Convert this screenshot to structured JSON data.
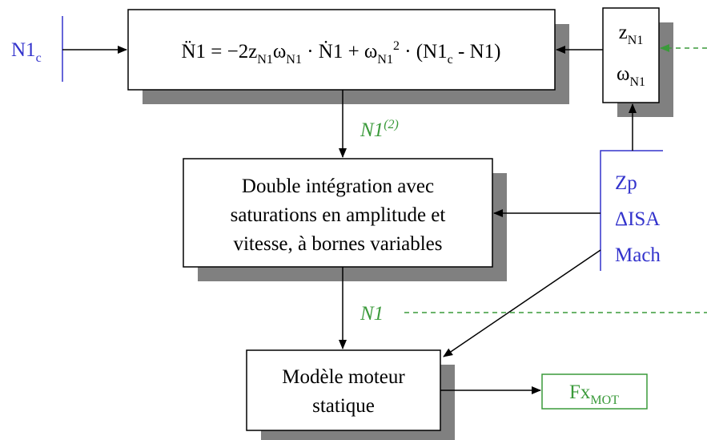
{
  "input": {
    "label": [
      {
        "t": "N1"
      },
      {
        "t": "c",
        "pos": "sub"
      }
    ]
  },
  "equation": [
    {
      "t": "N̈1 = −2z"
    },
    {
      "t": "N1",
      "pos": "sub"
    },
    {
      "t": "ω"
    },
    {
      "t": "N1",
      "pos": "sub"
    },
    {
      "t": " · Ṅ1 + ω"
    },
    {
      "t": "N1",
      "pos": "sub"
    },
    {
      "t": "2",
      "pos": "sup"
    },
    {
      "t": " · (N1"
    },
    {
      "t": "c",
      "pos": "sub"
    },
    {
      "t": " - N1)"
    }
  ],
  "params": {
    "z": [
      {
        "t": "z"
      },
      {
        "t": "N1",
        "pos": "sub"
      }
    ],
    "omega": [
      {
        "t": "ω"
      },
      {
        "t": "N1",
        "pos": "sub"
      }
    ]
  },
  "signal_n1_2": [
    {
      "t": "N1"
    },
    {
      "t": "(2)",
      "pos": "sup"
    }
  ],
  "integration": {
    "lines": [
      "Double intégration avec",
      "saturations en amplitude et",
      "vitesse, à bornes variables"
    ]
  },
  "conditions": [
    "Zp",
    "ΔISA",
    "Mach"
  ],
  "signal_n1": "N1",
  "model": {
    "lines": [
      "Modèle moteur",
      "statique"
    ]
  },
  "output": [
    {
      "t": "Fx"
    },
    {
      "t": "MOT",
      "pos": "sub"
    }
  ]
}
